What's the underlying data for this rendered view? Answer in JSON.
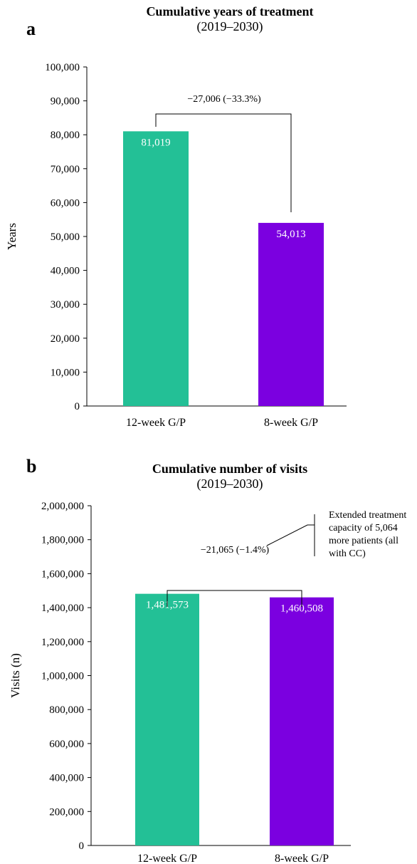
{
  "chart_data": [
    {
      "panel": "a",
      "type": "bar",
      "title": "Cumulative years of treatment",
      "subtitle": "(2019–2030)",
      "xlabel": "",
      "ylabel": "Years",
      "categories": [
        "12-week G/P",
        "8-week G/P"
      ],
      "values": [
        81019,
        54013
      ],
      "value_labels": [
        "81,019",
        "54,013"
      ],
      "colors": [
        "#23c096",
        "#7b00e0"
      ],
      "ylim": [
        0,
        100000
      ],
      "yticks": [
        0,
        10000,
        20000,
        30000,
        40000,
        50000,
        60000,
        70000,
        80000,
        90000,
        100000
      ],
      "ytick_labels": [
        "0",
        "10,000",
        "20,000",
        "30,000",
        "40,000",
        "50,000",
        "60,000",
        "70,000",
        "80,000",
        "90,000",
        "100,000"
      ],
      "annotation": "−27,006 (−33.3%)"
    },
    {
      "panel": "b",
      "type": "bar",
      "title": "Cumulative number of visits",
      "subtitle": "(2019–2030)",
      "xlabel": "",
      "ylabel": "Visits (n)",
      "categories": [
        "12-week G/P",
        "8-week G/P"
      ],
      "values": [
        1481573,
        1460508
      ],
      "value_labels": [
        "1,481,573",
        "1,460,508"
      ],
      "colors": [
        "#23c096",
        "#7b00e0"
      ],
      "ylim": [
        0,
        2000000
      ],
      "yticks": [
        0,
        200000,
        400000,
        600000,
        800000,
        1000000,
        1200000,
        1400000,
        1600000,
        1800000,
        2000000
      ],
      "ytick_labels": [
        "0",
        "200,000",
        "400,000",
        "600,000",
        "800,000",
        "1,000,000",
        "1,200,000",
        "1,400,000",
        "1,600,000",
        "1,800,000",
        "2,000,000"
      ],
      "annotation": "−21,065 (−1.4%)",
      "note_lines": [
        "Extended treatment",
        "capacity of 5,064",
        "more patients (all",
        "with CC)"
      ]
    }
  ]
}
